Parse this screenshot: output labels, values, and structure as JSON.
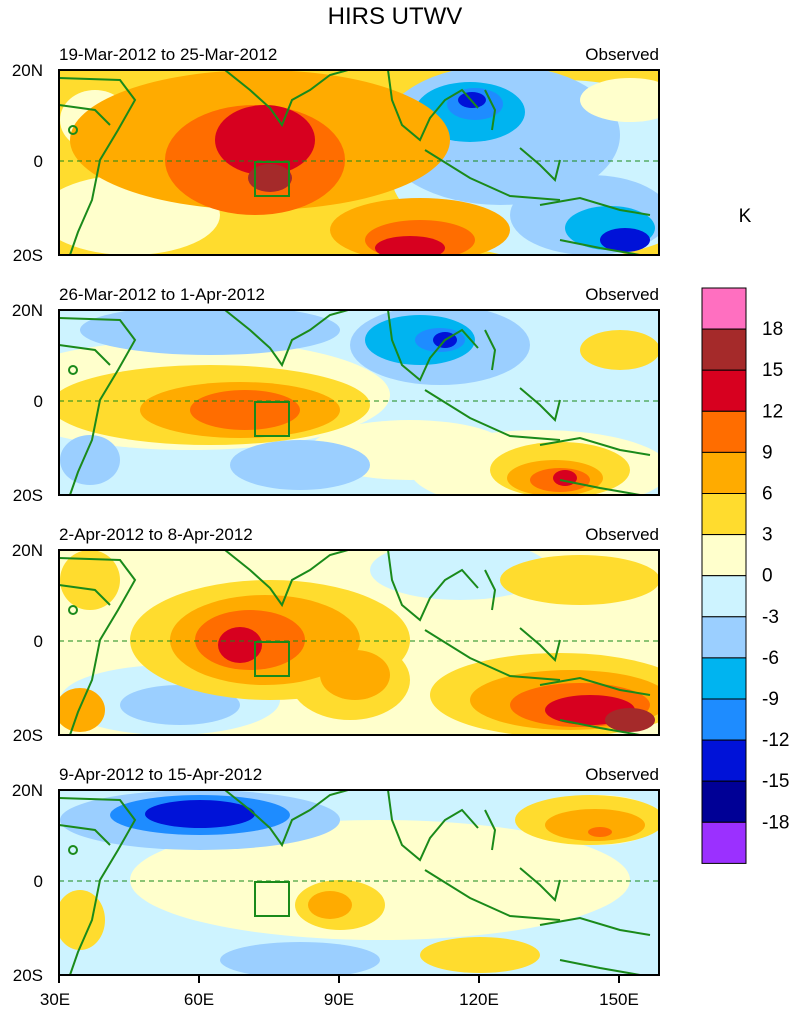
{
  "title": "HIRS UTWV",
  "units_label": "K",
  "panel_tag": "Observed",
  "panels": [
    {
      "date_range": "19-Mar-2012 to 25-Mar-2012",
      "tag": "Observed"
    },
    {
      "date_range": "26-Mar-2012 to 1-Apr-2012",
      "tag": "Observed"
    },
    {
      "date_range": "2-Apr-2012 to 8-Apr-2012",
      "tag": "Observed"
    },
    {
      "date_range": "9-Apr-2012 to 15-Apr-2012",
      "tag": "Observed"
    }
  ],
  "lat_labels": [
    "20N",
    "0",
    "20S"
  ],
  "lon_labels": [
    "30E",
    "60E",
    "90E",
    "120E",
    "150E"
  ],
  "colorbar": {
    "labels": [
      "18",
      "15",
      "12",
      "9",
      "6",
      "3",
      "0",
      "-3",
      "-6",
      "-9",
      "-12",
      "-15",
      "-18"
    ],
    "colors": [
      "#ff6fc0",
      "#a52a2a",
      "#d7001f",
      "#ff6d00",
      "#ffab00",
      "#ffdc2e",
      "#ffffcc",
      "#cdf3ff",
      "#9bcfff",
      "#00b4f0",
      "#1e8cff",
      "#0012d8",
      "#000096",
      "#9b30ff"
    ]
  },
  "map_colors": {
    "coast": "#1a8a1a",
    "equator": "#1a8a1a"
  }
}
